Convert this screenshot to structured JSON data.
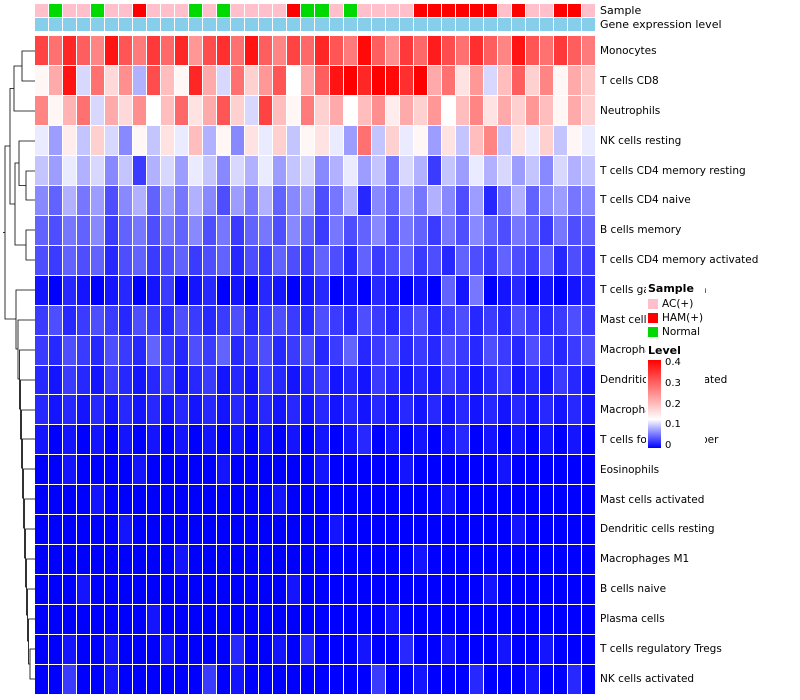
{
  "annotations": {
    "sample_label": "Sample",
    "expression_label": "Gene expression level",
    "expression_color": "#87CEEB"
  },
  "legend": {
    "sample_title": "Sample",
    "groups": [
      {
        "label": "AC(+)",
        "color": "#FFC0CB"
      },
      {
        "label": "HAM(+)",
        "color": "#FF0000"
      },
      {
        "label": "Normal",
        "color": "#00D900"
      }
    ],
    "level_title": "Level",
    "level_ticks": [
      "0.4",
      "0.3",
      "0.2",
      "0.1",
      "0"
    ],
    "scale": {
      "min": 0,
      "mid": 0.13,
      "max": 0.4,
      "min_color": "#0000FF",
      "mid_color": "#FFFFFF",
      "max_color": "#FF0000"
    }
  },
  "chart_data": {
    "type": "heatmap",
    "title": "",
    "value_range": [
      0,
      0.4
    ],
    "n_columns": 40,
    "rows": [
      "Monocytes",
      "T cells CD8",
      "Neutrophils",
      "NK cells resting",
      "T cells CD4 memory resting",
      "T cells CD4 naive",
      "B cells memory",
      "T cells CD4 memory activated",
      "T cells gamma delta",
      "Mast cells resting",
      "Macrophages M0",
      "Dendritic cells activated",
      "Macrophages M2",
      "T cells follicular helper",
      "Eosinophils",
      "Mast cells activated",
      "Dendritic cells resting",
      "Macrophages M1",
      "B cells naive",
      "Plasma cells",
      "T cells regulatory Tregs",
      "NK cells activated"
    ],
    "column_groups": [
      "AC(+)",
      "Normal",
      "AC(+)",
      "AC(+)",
      "Normal",
      "AC(+)",
      "AC(+)",
      "HAM(+)",
      "AC(+)",
      "AC(+)",
      "AC(+)",
      "Normal",
      "AC(+)",
      "Normal",
      "AC(+)",
      "AC(+)",
      "AC(+)",
      "AC(+)",
      "HAM(+)",
      "Normal",
      "Normal",
      "AC(+)",
      "Normal",
      "AC(+)",
      "AC(+)",
      "AC(+)",
      "AC(+)",
      "HAM(+)",
      "HAM(+)",
      "HAM(+)",
      "HAM(+)",
      "HAM(+)",
      "HAM(+)",
      "AC(+)",
      "HAM(+)",
      "AC(+)",
      "AC(+)",
      "HAM(+)",
      "HAM(+)",
      "AC(+)"
    ],
    "values": [
      [
        0.33,
        0.28,
        0.36,
        0.3,
        0.26,
        0.38,
        0.31,
        0.27,
        0.34,
        0.29,
        0.36,
        0.24,
        0.32,
        0.35,
        0.28,
        0.38,
        0.3,
        0.26,
        0.33,
        0.29,
        0.36,
        0.31,
        0.27,
        0.39,
        0.3,
        0.25,
        0.34,
        0.29,
        0.37,
        0.32,
        0.28,
        0.35,
        0.3,
        0.26,
        0.38,
        0.31,
        0.28,
        0.34,
        0.3,
        0.27
      ],
      [
        0.14,
        0.22,
        0.38,
        0.11,
        0.28,
        0.17,
        0.25,
        0.09,
        0.32,
        0.2,
        0.14,
        0.36,
        0.22,
        0.11,
        0.28,
        0.18,
        0.24,
        0.31,
        0.13,
        0.22,
        0.3,
        0.38,
        0.4,
        0.36,
        0.41,
        0.39,
        0.35,
        0.42,
        0.22,
        0.28,
        0.16,
        0.24,
        0.11,
        0.2,
        0.3,
        0.18,
        0.26,
        0.14,
        0.22,
        0.19
      ],
      [
        0.26,
        0.14,
        0.21,
        0.28,
        0.11,
        0.22,
        0.17,
        0.25,
        0.13,
        0.2,
        0.29,
        0.16,
        0.22,
        0.31,
        0.18,
        0.11,
        0.33,
        0.2,
        0.14,
        0.27,
        0.18,
        0.22,
        0.13,
        0.2,
        0.25,
        0.15,
        0.22,
        0.18,
        0.24,
        0.13,
        0.2,
        0.26,
        0.16,
        0.22,
        0.18,
        0.24,
        0.2,
        0.14,
        0.22,
        0.18
      ],
      [
        0.12,
        0.08,
        0.15,
        0.1,
        0.18,
        0.11,
        0.07,
        0.14,
        0.1,
        0.16,
        0.12,
        0.2,
        0.09,
        0.14,
        0.07,
        0.16,
        0.12,
        0.18,
        0.1,
        0.14,
        0.16,
        0.12,
        0.08,
        0.28,
        0.1,
        0.18,
        0.12,
        0.14,
        0.08,
        0.16,
        0.1,
        0.2,
        0.26,
        0.1,
        0.16,
        0.12,
        0.18,
        0.1,
        0.14,
        0.12
      ],
      [
        0.1,
        0.08,
        0.12,
        0.09,
        0.11,
        0.07,
        0.1,
        0.03,
        0.09,
        0.11,
        0.08,
        0.12,
        0.1,
        0.07,
        0.11,
        0.09,
        0.12,
        0.08,
        0.1,
        0.11,
        0.07,
        0.09,
        0.12,
        0.08,
        0.1,
        0.06,
        0.11,
        0.09,
        0.03,
        0.1,
        0.08,
        0.12,
        0.09,
        0.11,
        0.08,
        0.1,
        0.07,
        0.11,
        0.09,
        0.1
      ],
      [
        0.07,
        0.05,
        0.09,
        0.06,
        0.08,
        0.04,
        0.07,
        0.09,
        0.05,
        0.08,
        0.06,
        0.09,
        0.07,
        0.04,
        0.08,
        0.06,
        0.09,
        0.05,
        0.07,
        0.08,
        0.04,
        0.06,
        0.09,
        0.02,
        0.07,
        0.05,
        0.08,
        0.06,
        0.09,
        0.07,
        0.04,
        0.08,
        0.02,
        0.06,
        0.09,
        0.05,
        0.07,
        0.08,
        0.06,
        0.07
      ],
      [
        0.05,
        0.04,
        0.06,
        0.05,
        0.07,
        0.03,
        0.05,
        0.06,
        0.04,
        0.06,
        0.05,
        0.07,
        0.04,
        0.06,
        0.03,
        0.05,
        0.06,
        0.04,
        0.07,
        0.05,
        0.03,
        0.06,
        0.04,
        0.05,
        0.07,
        0.04,
        0.06,
        0.05,
        0.03,
        0.06,
        0.04,
        0.07,
        0.05,
        0.04,
        0.06,
        0.05,
        0.03,
        0.06,
        0.04,
        0.05
      ],
      [
        0.04,
        0.03,
        0.05,
        0.04,
        0.05,
        0.02,
        0.04,
        0.05,
        0.03,
        0.04,
        0.05,
        0.03,
        0.04,
        0.05,
        0.02,
        0.04,
        0.03,
        0.05,
        0.04,
        0.03,
        0.05,
        0.04,
        0.02,
        0.05,
        0.03,
        0.04,
        0.05,
        0.03,
        0.04,
        0.02,
        0.05,
        0.04,
        0.03,
        0.05,
        0.04,
        0.03,
        0.05,
        0.02,
        0.04,
        0.03
      ],
      [
        0.01,
        0,
        0.02,
        0.01,
        0,
        0.01,
        0.02,
        0,
        0.01,
        0.03,
        0,
        0.01,
        0.02,
        0,
        0.01,
        0,
        0.02,
        0.01,
        0,
        0.01,
        0.02,
        0,
        0.01,
        0,
        0.02,
        0.01,
        0,
        0.01,
        0,
        0.05,
        0.01,
        0.06,
        0,
        0.01,
        0.02,
        0,
        0.01,
        0,
        0.01,
        0.02
      ],
      [
        0.03,
        0.04,
        0.02,
        0.03,
        0.04,
        0.03,
        0.02,
        0.04,
        0.03,
        0.02,
        0.04,
        0.03,
        0.02,
        0.03,
        0.04,
        0.02,
        0.03,
        0.04,
        0.03,
        0.02,
        0.04,
        0.03,
        0.02,
        0.04,
        0.03,
        0.02,
        0.03,
        0.04,
        0.02,
        0.03,
        0.04,
        0.02,
        0.03,
        0.02,
        0.04,
        0.03,
        0.02,
        0.03,
        0.04,
        0.03
      ],
      [
        0.03,
        0.02,
        0.04,
        0.03,
        0.02,
        0.04,
        0.03,
        0.02,
        0.05,
        0.03,
        0.02,
        0.04,
        0.03,
        0.05,
        0.02,
        0.03,
        0.04,
        0.02,
        0.03,
        0.04,
        0.02,
        0.03,
        0.05,
        0.02,
        0.03,
        0.04,
        0.02,
        0.03,
        0.02,
        0.04,
        0.03,
        0.02,
        0.04,
        0.03,
        0.02,
        0.04,
        0.03,
        0.02,
        0.03,
        0.04
      ],
      [
        0.02,
        0.01,
        0.03,
        0.02,
        0.01,
        0.03,
        0.02,
        0.01,
        0.02,
        0.03,
        0.01,
        0.02,
        0.03,
        0.01,
        0.02,
        0.01,
        0.03,
        0.02,
        0.01,
        0.02,
        0.03,
        0.01,
        0.02,
        0.01,
        0.03,
        0.02,
        0.01,
        0.02,
        0.01,
        0.03,
        0.02,
        0.01,
        0.02,
        0.03,
        0.01,
        0.02,
        0.01,
        0.03,
        0.02,
        0.01
      ],
      [
        0.02,
        0.01,
        0.02,
        0.01,
        0.02,
        0.01,
        0.02,
        0.01,
        0.02,
        0.01,
        0.02,
        0.01,
        0.02,
        0.01,
        0.02,
        0.01,
        0.02,
        0.01,
        0.02,
        0.01,
        0.02,
        0.01,
        0.02,
        0.01,
        0.02,
        0.01,
        0.02,
        0.01,
        0.02,
        0.01,
        0.02,
        0.01,
        0.02,
        0.01,
        0.02,
        0.01,
        0.02,
        0.01,
        0.02,
        0.01
      ],
      [
        0.01,
        0,
        0.01,
        0,
        0.01,
        0,
        0.01,
        0,
        0.01,
        0,
        0.01,
        0,
        0.01,
        0,
        0.01,
        0,
        0.01,
        0,
        0.01,
        0,
        0.01,
        0,
        0.01,
        0.02,
        0,
        0.01,
        0,
        0.01,
        0,
        0.01,
        0.02,
        0,
        0.01,
        0,
        0.01,
        0,
        0.01,
        0,
        0.01,
        0
      ],
      [
        0,
        0,
        0.01,
        0,
        0,
        0,
        0,
        0.01,
        0,
        0,
        0,
        0,
        0,
        0.01,
        0,
        0,
        0,
        0,
        0,
        0,
        0.01,
        0,
        0,
        0,
        0,
        0,
        0.01,
        0,
        0,
        0,
        0,
        0,
        0,
        0.01,
        0,
        0,
        0,
        0,
        0,
        0
      ],
      [
        0,
        0,
        0,
        0,
        0.01,
        0,
        0,
        0,
        0,
        0,
        0,
        0,
        0,
        0,
        0,
        0,
        0,
        0.01,
        0,
        0,
        0,
        0,
        0,
        0,
        0,
        0,
        0,
        0,
        0,
        0.01,
        0,
        0,
        0,
        0,
        0,
        0,
        0,
        0,
        0,
        0
      ],
      [
        0,
        0,
        0,
        0,
        0,
        0,
        0.01,
        0,
        0,
        0,
        0,
        0,
        0,
        0,
        0,
        0,
        0,
        0,
        0,
        0,
        0,
        0.01,
        0,
        0,
        0,
        0,
        0,
        0,
        0,
        0,
        0,
        0,
        0,
        0,
        0.01,
        0,
        0,
        0,
        0,
        0
      ],
      [
        0,
        0,
        0,
        0,
        0,
        0,
        0,
        0,
        0,
        0,
        0.01,
        0,
        0,
        0,
        0,
        0,
        0,
        0,
        0,
        0,
        0,
        0,
        0,
        0,
        0,
        0,
        0,
        0.01,
        0,
        0,
        0,
        0,
        0,
        0,
        0,
        0,
        0,
        0,
        0,
        0
      ],
      [
        0,
        0,
        0,
        0.01,
        0,
        0,
        0,
        0,
        0,
        0,
        0,
        0,
        0,
        0,
        0,
        0,
        0,
        0,
        0.01,
        0,
        0,
        0,
        0,
        0,
        0,
        0,
        0,
        0,
        0,
        0,
        0,
        0,
        0.01,
        0,
        0,
        0,
        0,
        0,
        0,
        0
      ],
      [
        0,
        0,
        0,
        0,
        0,
        0,
        0,
        0,
        0.01,
        0,
        0,
        0,
        0,
        0,
        0,
        0,
        0,
        0,
        0,
        0,
        0,
        0,
        0,
        0,
        0,
        0.01,
        0,
        0,
        0,
        0,
        0,
        0,
        0,
        0,
        0,
        0,
        0,
        0,
        0,
        0
      ],
      [
        0,
        0,
        0.01,
        0,
        0,
        0.01,
        0,
        0,
        0,
        0.01,
        0,
        0,
        0,
        0,
        0.02,
        0,
        0,
        0.01,
        0,
        0.02,
        0,
        0,
        0,
        0.01,
        0,
        0,
        0.02,
        0,
        0,
        0.01,
        0,
        0,
        0,
        0.01,
        0,
        0,
        0.01,
        0,
        0,
        0
      ],
      [
        0,
        0,
        0.03,
        0,
        0,
        0.01,
        0,
        0,
        0,
        0,
        0,
        0,
        0.03,
        0,
        0.01,
        0,
        0,
        0,
        0,
        0,
        0,
        0,
        0,
        0,
        0.03,
        0,
        0,
        0.01,
        0,
        0,
        0,
        0.02,
        0,
        0,
        0,
        0.01,
        0,
        0,
        0.02,
        0
      ]
    ]
  }
}
